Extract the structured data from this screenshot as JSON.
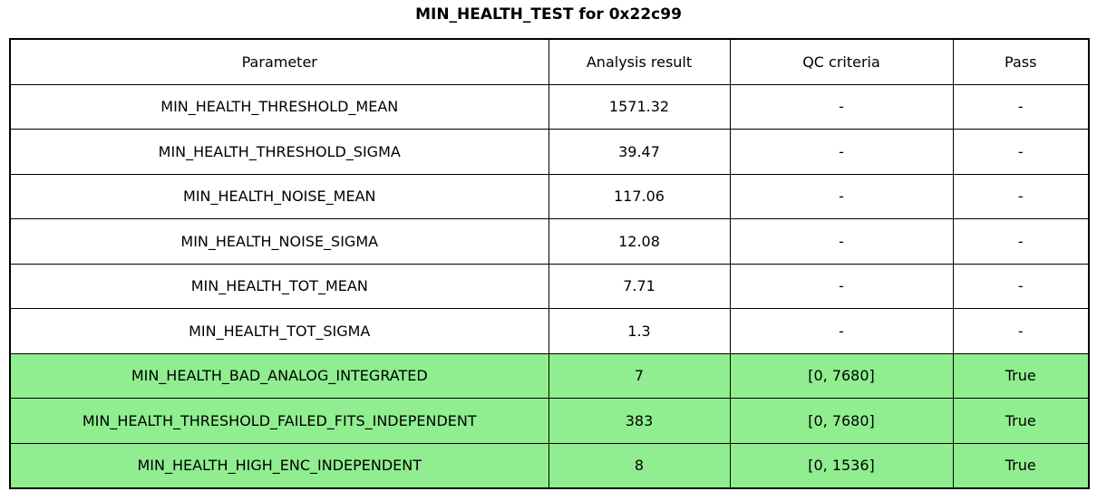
{
  "chart_data": {
    "type": "table",
    "title": "MIN_HEALTH_TEST for 0x22c99",
    "columns": [
      "Parameter",
      "Analysis result",
      "QC criteria",
      "Pass"
    ],
    "rows": [
      [
        "MIN_HEALTH_THRESHOLD_MEAN",
        "1571.32",
        "-",
        "-"
      ],
      [
        "MIN_HEALTH_THRESHOLD_SIGMA",
        "39.47",
        "-",
        "-"
      ],
      [
        "MIN_HEALTH_NOISE_MEAN",
        "117.06",
        "-",
        "-"
      ],
      [
        "MIN_HEALTH_NOISE_SIGMA",
        "12.08",
        "-",
        "-"
      ],
      [
        "MIN_HEALTH_TOT_MEAN",
        "7.71",
        "-",
        "-"
      ],
      [
        "MIN_HEALTH_TOT_SIGMA",
        "1.3",
        "-",
        "-"
      ],
      [
        "MIN_HEALTH_BAD_ANALOG_INTEGRATED",
        "7",
        "[0, 7680]",
        "True"
      ],
      [
        "MIN_HEALTH_THRESHOLD_FAILED_FITS_INDEPENDENT",
        "383",
        "[0, 7680]",
        "True"
      ],
      [
        "MIN_HEALTH_HIGH_ENC_INDEPENDENT",
        "8",
        "[0, 1536]",
        "True"
      ]
    ],
    "highlighted_rows": [
      6,
      7,
      8
    ],
    "colors": {
      "pass_row_bg": "#90ee90",
      "default_row_bg": "#ffffff",
      "border": "#000000",
      "text": "#000000"
    },
    "layout": {
      "grid": "full-borders",
      "legend": "none",
      "title_position": "top-center"
    }
  }
}
